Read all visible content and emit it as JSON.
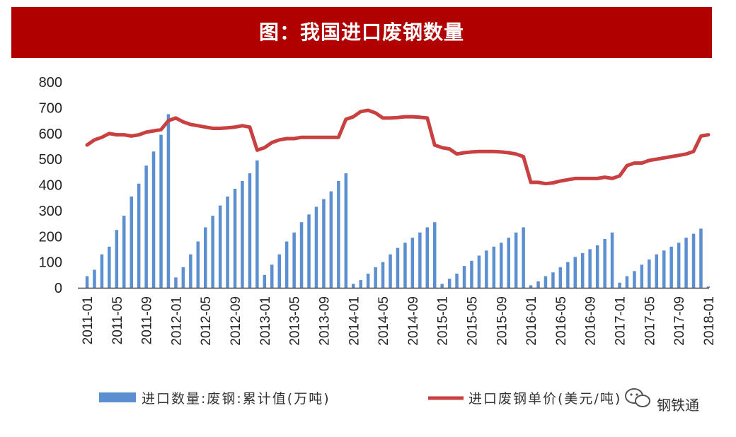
{
  "header": {
    "title": "图：我国进口废钢数量"
  },
  "watermark": {
    "text": "钢铁通",
    "icon": "wechat-icon"
  },
  "colors": {
    "banner": "#b00000",
    "bars": "#5b8fd0",
    "line": "#c84040"
  },
  "chart_data": {
    "type": "bar+line",
    "ylim": [
      0,
      800
    ],
    "yticks": [
      0,
      100,
      200,
      300,
      400,
      500,
      600,
      700,
      800
    ],
    "grid": false,
    "legend_position": "bottom",
    "x": [
      "2011-01",
      "2011-02",
      "2011-03",
      "2011-04",
      "2011-05",
      "2011-06",
      "2011-07",
      "2011-08",
      "2011-09",
      "2011-10",
      "2011-11",
      "2011-12",
      "2012-01",
      "2012-02",
      "2012-03",
      "2012-04",
      "2012-05",
      "2012-06",
      "2012-07",
      "2012-08",
      "2012-09",
      "2012-10",
      "2012-11",
      "2012-12",
      "2013-01",
      "2013-02",
      "2013-03",
      "2013-04",
      "2013-05",
      "2013-06",
      "2013-07",
      "2013-08",
      "2013-09",
      "2013-10",
      "2013-11",
      "2013-12",
      "2014-01",
      "2014-02",
      "2014-03",
      "2014-04",
      "2014-05",
      "2014-06",
      "2014-07",
      "2014-08",
      "2014-09",
      "2014-10",
      "2014-11",
      "2014-12",
      "2015-01",
      "2015-02",
      "2015-03",
      "2015-04",
      "2015-05",
      "2015-06",
      "2015-07",
      "2015-08",
      "2015-09",
      "2015-10",
      "2015-11",
      "2015-12",
      "2016-01",
      "2016-02",
      "2016-03",
      "2016-04",
      "2016-05",
      "2016-06",
      "2016-07",
      "2016-08",
      "2016-09",
      "2016-10",
      "2016-11",
      "2016-12",
      "2017-01",
      "2017-02",
      "2017-03",
      "2017-04",
      "2017-05",
      "2017-06",
      "2017-07",
      "2017-08",
      "2017-09",
      "2017-10",
      "2017-11",
      "2017-12",
      "2018-01"
    ],
    "xtick_labels": [
      "2011-01",
      "2011-05",
      "2011-09",
      "2012-01",
      "2012-05",
      "2012-09",
      "2013-01",
      "2013-05",
      "2013-09",
      "2014-01",
      "2014-05",
      "2014-09",
      "2015-01",
      "2015-05",
      "2015-09",
      "2016-01",
      "2016-05",
      "2016-09",
      "2017-01",
      "2017-05",
      "2017-09",
      "2018-01"
    ],
    "series": [
      {
        "name": "进口数量:废钢:累计值(万吨)",
        "type": "bar",
        "values": [
          45,
          70,
          130,
          160,
          225,
          280,
          355,
          405,
          475,
          530,
          595,
          675,
          40,
          80,
          130,
          180,
          235,
          280,
          320,
          355,
          385,
          415,
          445,
          495,
          50,
          90,
          130,
          180,
          215,
          255,
          285,
          315,
          345,
          375,
          415,
          445,
          15,
          30,
          55,
          80,
          100,
          130,
          155,
          175,
          195,
          215,
          235,
          255,
          15,
          35,
          55,
          85,
          105,
          125,
          145,
          160,
          175,
          195,
          215,
          235,
          10,
          25,
          45,
          60,
          80,
          100,
          120,
          135,
          150,
          165,
          190,
          215,
          20,
          45,
          65,
          90,
          110,
          130,
          145,
          160,
          175,
          195,
          210,
          230,
          5
        ]
      },
      {
        "name": "进口废钢单价(美元/吨)",
        "type": "line",
        "values": [
          555,
          575,
          585,
          600,
          595,
          595,
          590,
          595,
          605,
          610,
          615,
          650,
          660,
          645,
          635,
          630,
          625,
          620,
          620,
          622,
          625,
          630,
          625,
          535,
          545,
          565,
          575,
          580,
          580,
          585,
          585,
          585,
          585,
          585,
          585,
          655,
          665,
          685,
          690,
          680,
          660,
          660,
          662,
          665,
          665,
          663,
          660,
          555,
          545,
          540,
          520,
          525,
          528,
          530,
          530,
          530,
          528,
          525,
          520,
          510,
          410,
          410,
          405,
          408,
          415,
          420,
          425,
          425,
          425,
          425,
          430,
          425,
          435,
          475,
          485,
          485,
          495,
          500,
          505,
          510,
          515,
          520,
          530,
          590,
          595
        ]
      }
    ]
  }
}
